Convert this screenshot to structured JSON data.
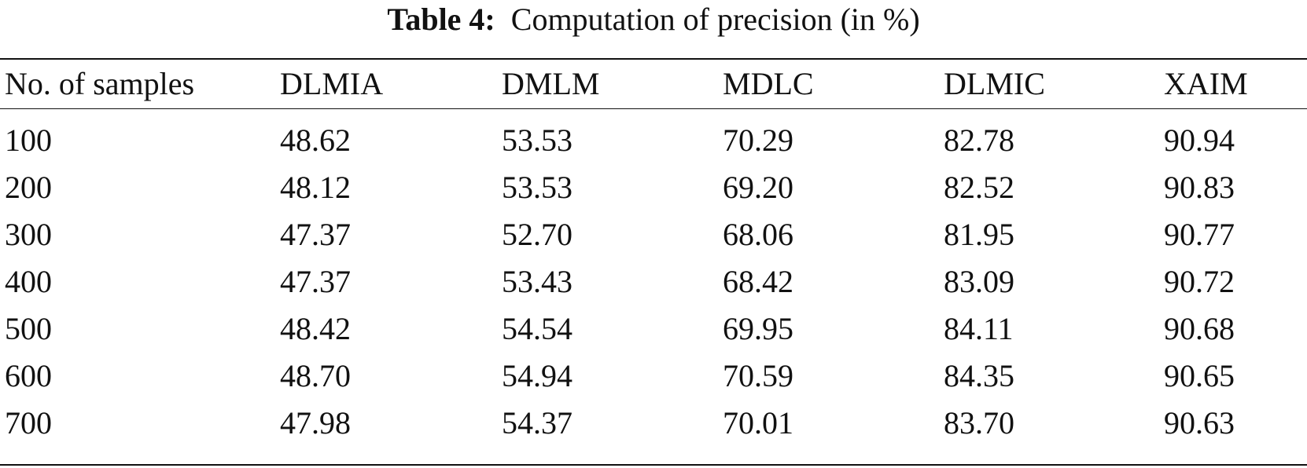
{
  "caption": {
    "label": "Table 4:",
    "text": "Computation of precision (in %)"
  },
  "table": {
    "headers": [
      "No. of samples",
      "DLMIA",
      "DMLM",
      "MDLC",
      "DLMIC",
      "XAIM"
    ],
    "rows": [
      [
        "100",
        "48.62",
        "53.53",
        "70.29",
        "82.78",
        "90.94"
      ],
      [
        "200",
        "48.12",
        "53.53",
        "69.20",
        "82.52",
        "90.83"
      ],
      [
        "300",
        "47.37",
        "52.70",
        "68.06",
        "81.95",
        "90.77"
      ],
      [
        "400",
        "47.37",
        "53.43",
        "68.42",
        "83.09",
        "90.72"
      ],
      [
        "500",
        "48.42",
        "54.54",
        "69.95",
        "84.11",
        "90.68"
      ],
      [
        "600",
        "48.70",
        "54.94",
        "70.59",
        "84.35",
        "90.65"
      ],
      [
        "700",
        "47.98",
        "54.37",
        "70.01",
        "83.70",
        "90.63"
      ]
    ]
  }
}
